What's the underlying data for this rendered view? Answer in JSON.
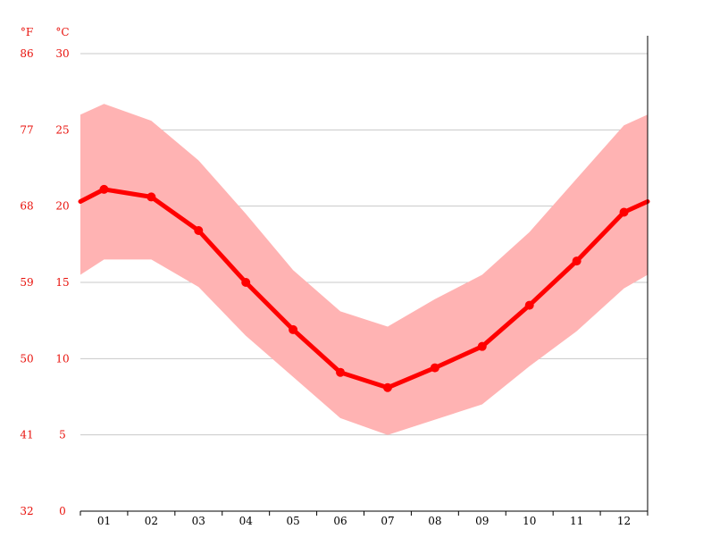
{
  "chart_data": {
    "type": "line",
    "categories": [
      "01",
      "02",
      "03",
      "04",
      "05",
      "06",
      "07",
      "08",
      "09",
      "10",
      "11",
      "12"
    ],
    "y_axis_celsius": {
      "unit": "°C",
      "ticks": [
        "30",
        "25",
        "20",
        "15",
        "10",
        "5",
        "0"
      ],
      "ylim": [
        0,
        30
      ]
    },
    "y_axis_fahrenheit": {
      "unit": "°F",
      "ticks": [
        "86",
        "77",
        "68",
        "59",
        "50",
        "41",
        "32"
      ]
    },
    "series": [
      {
        "kind": "line",
        "values": [
          21.1,
          20.6,
          18.4,
          15.0,
          11.9,
          9.1,
          8.1,
          9.4,
          10.8,
          13.5,
          16.4,
          19.6
        ],
        "edge_start": 20.3,
        "edge_end": 20.3,
        "color": "#ff0000"
      },
      {
        "kind": "band",
        "upper": [
          26.7,
          25.6,
          23.0,
          19.5,
          15.8,
          13.1,
          12.1,
          13.9,
          15.5,
          18.3,
          21.8,
          25.3
        ],
        "lower": [
          16.5,
          16.5,
          14.7,
          11.5,
          8.8,
          6.1,
          5.0,
          6.0,
          7.0,
          9.5,
          11.8,
          14.6
        ],
        "upper_edge_start": 26.0,
        "upper_edge_end": 26.0,
        "lower_edge_start": 15.5,
        "lower_edge_end": 15.5,
        "color": "#ffb3b3"
      }
    ],
    "grid": true
  }
}
